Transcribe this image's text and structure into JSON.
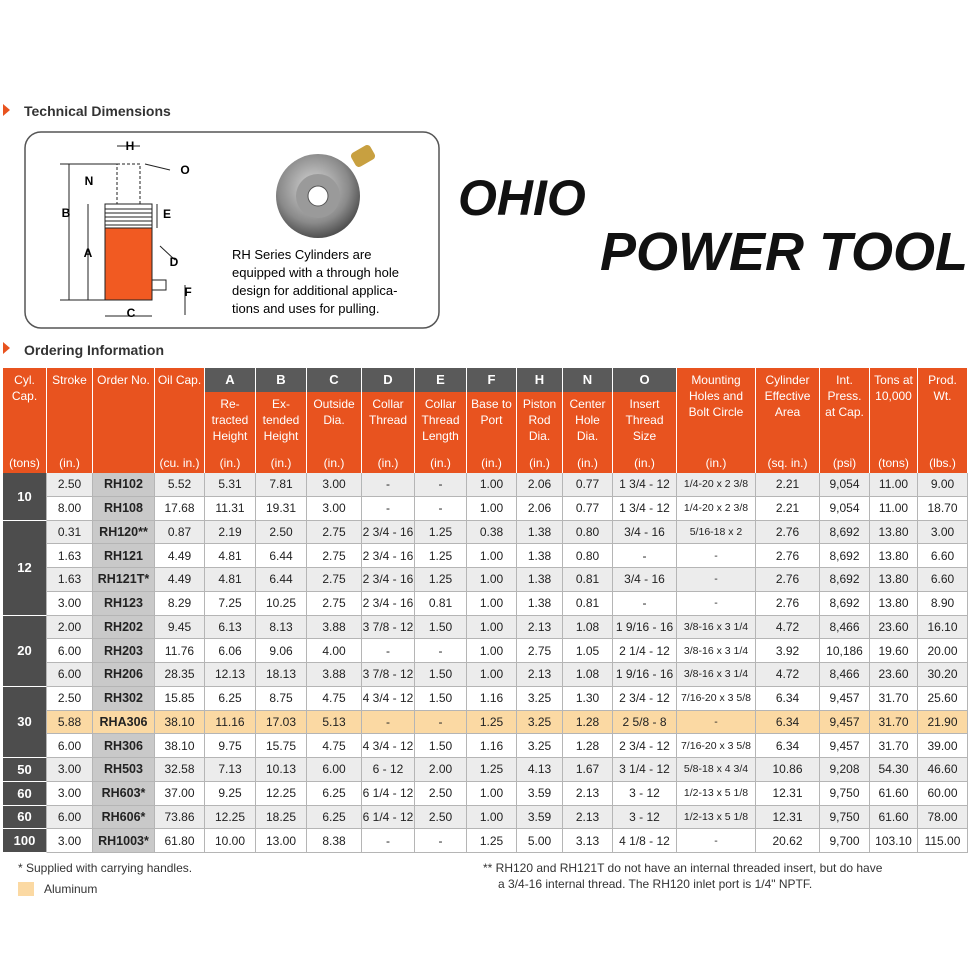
{
  "sections": {
    "technical": "Technical Dimensions",
    "ordering": "Ordering Information"
  },
  "diagram": {
    "labels": {
      "H": "H",
      "O": "O",
      "N": "N",
      "B": "B",
      "E": "E",
      "A": "A",
      "D": "D",
      "F": "F",
      "C": "C"
    },
    "caption": [
      "RH Series Cylinders are",
      "equipped with a through hole",
      "design for additional applica-",
      "tions and uses for pulling."
    ]
  },
  "logo": {
    "word1": "OHIO",
    "word2": "POWER TOOL"
  },
  "table": {
    "columns": [
      {
        "title": "Cyl. Cap.",
        "unit": "(tons)"
      },
      {
        "title": "Stroke",
        "unit": "(in.)"
      },
      {
        "title": "Order No."
      },
      {
        "title": "Oil Cap.",
        "unit": "(cu. in.)"
      },
      {
        "letter": "A",
        "title": "Re-tracted Height",
        "unit": "(in.)"
      },
      {
        "letter": "B",
        "title": "Ex-tended Height",
        "unit": "(in.)"
      },
      {
        "letter": "C",
        "title": "Outside Dia.",
        "unit": "(in.)"
      },
      {
        "letter": "D",
        "title": "Collar Thread",
        "unit": "(in.)"
      },
      {
        "letter": "E",
        "title": "Collar Thread Length",
        "unit": "(in.)"
      },
      {
        "letter": "F",
        "title": "Base to Port",
        "unit": "(in.)"
      },
      {
        "letter": "H",
        "title": "Piston Rod Dia.",
        "unit": "(in.)"
      },
      {
        "letter": "N",
        "title": "Center Hole Dia.",
        "unit": "(in.)"
      },
      {
        "letter": "O",
        "title": "Insert Thread Size",
        "unit": "(in.)"
      },
      {
        "title": "Mounting Holes and Bolt Circle",
        "unit": "(in.)"
      },
      {
        "title": "Cylinder Effective Area",
        "unit": "(sq. in.)"
      },
      {
        "title": "Int. Press. at Cap.",
        "unit": "(psi)"
      },
      {
        "title": "Tons at 10,000",
        "unit": "(tons)"
      },
      {
        "title": "Prod. Wt.",
        "unit": "(lbs.)"
      }
    ],
    "groups": [
      {
        "capacity": "10",
        "rows": [
          {
            "cells": [
              "2.50",
              "RH102",
              "5.52",
              "5.31",
              "7.81",
              "3.00",
              "-",
              "-",
              "1.00",
              "2.06",
              "0.77",
              "1 3/4 - 12",
              "1/4-20 x 2 3/8",
              "2.21",
              "9,054",
              "11.00",
              "9.00"
            ]
          },
          {
            "cells": [
              "8.00",
              "RH108",
              "17.68",
              "11.31",
              "19.31",
              "3.00",
              "-",
              "-",
              "1.00",
              "2.06",
              "0.77",
              "1 3/4 - 12",
              "1/4-20 x 2 3/8",
              "2.21",
              "9,054",
              "11.00",
              "18.70"
            ]
          }
        ]
      },
      {
        "capacity": "12",
        "rows": [
          {
            "cells": [
              "0.31",
              "RH120**",
              "0.87",
              "2.19",
              "2.50",
              "2.75",
              "2 3/4 - 16",
              "1.25",
              "0.38",
              "1.38",
              "0.80",
              "3/4 - 16",
              "5/16-18 x 2",
              "2.76",
              "8,692",
              "13.80",
              "3.00"
            ]
          },
          {
            "cells": [
              "1.63",
              "RH121",
              "4.49",
              "4.81",
              "6.44",
              "2.75",
              "2 3/4 - 16",
              "1.25",
              "1.00",
              "1.38",
              "0.80",
              "-",
              "-",
              "2.76",
              "8,692",
              "13.80",
              "6.60"
            ]
          },
          {
            "cells": [
              "1.63",
              "RH121T*",
              "4.49",
              "4.81",
              "6.44",
              "2.75",
              "2 3/4 - 16",
              "1.25",
              "1.00",
              "1.38",
              "0.81",
              "3/4 - 16",
              "-",
              "2.76",
              "8,692",
              "13.80",
              "6.60"
            ]
          },
          {
            "cells": [
              "3.00",
              "RH123",
              "8.29",
              "7.25",
              "10.25",
              "2.75",
              "2 3/4 - 16",
              "0.81",
              "1.00",
              "1.38",
              "0.81",
              "-",
              "-",
              "2.76",
              "8,692",
              "13.80",
              "8.90"
            ]
          }
        ]
      },
      {
        "capacity": "20",
        "rows": [
          {
            "cells": [
              "2.00",
              "RH202",
              "9.45",
              "6.13",
              "8.13",
              "3.88",
              "3 7/8 - 12",
              "1.50",
              "1.00",
              "2.13",
              "1.08",
              "1 9/16 - 16",
              "3/8-16 x 3 1/4",
              "4.72",
              "8,466",
              "23.60",
              "16.10"
            ]
          },
          {
            "cells": [
              "6.00",
              "RH203",
              "11.76",
              "6.06",
              "9.06",
              "4.00",
              "-",
              "-",
              "1.00",
              "2.75",
              "1.05",
              "2 1/4 - 12",
              "3/8-16 x 3 1/4",
              "3.92",
              "10,186",
              "19.60",
              "20.00"
            ]
          },
          {
            "cells": [
              "6.00",
              "RH206",
              "28.35",
              "12.13",
              "18.13",
              "3.88",
              "3 7/8 - 12",
              "1.50",
              "1.00",
              "2.13",
              "1.08",
              "1 9/16 - 16",
              "3/8-16 x 3 1/4",
              "4.72",
              "8,466",
              "23.60",
              "30.20"
            ]
          }
        ]
      },
      {
        "capacity": "30",
        "rows": [
          {
            "cells": [
              "2.50",
              "RH302",
              "15.85",
              "6.25",
              "8.75",
              "4.75",
              "4 3/4 - 12",
              "1.50",
              "1.16",
              "3.25",
              "1.30",
              "2 3/4 - 12",
              "7/16-20 x 3 5/8",
              "6.34",
              "9,457",
              "31.70",
              "25.60"
            ]
          },
          {
            "cells": [
              "5.88",
              "RHA306",
              "38.10",
              "11.16",
              "17.03",
              "5.13",
              "-",
              "-",
              "1.25",
              "3.25",
              "1.28",
              "2 5/8 - 8",
              "-",
              "6.34",
              "9,457",
              "31.70",
              "21.90"
            ],
            "aluminum": true
          },
          {
            "cells": [
              "6.00",
              "RH306",
              "38.10",
              "9.75",
              "15.75",
              "4.75",
              "4 3/4 - 12",
              "1.50",
              "1.16",
              "3.25",
              "1.28",
              "2 3/4 - 12",
              "7/16-20 x 3 5/8",
              "6.34",
              "9,457",
              "31.70",
              "39.00"
            ]
          }
        ]
      },
      {
        "capacity": "50",
        "rows": [
          {
            "cells": [
              "3.00",
              "RH503",
              "32.58",
              "7.13",
              "10.13",
              "6.00",
              "6 - 12",
              "2.00",
              "1.25",
              "4.13",
              "1.67",
              "3 1/4 - 12",
              "5/8-18 x 4 3/4",
              "10.86",
              "9,208",
              "54.30",
              "46.60"
            ]
          }
        ]
      },
      {
        "capacity": "60",
        "rows": [
          {
            "cells": [
              "3.00",
              "RH603*",
              "37.00",
              "9.25",
              "12.25",
              "6.25",
              "6 1/4 - 12",
              "2.50",
              "1.00",
              "3.59",
              "2.13",
              "3 - 12",
              "1/2-13 x 5 1/8",
              "12.31",
              "9,750",
              "61.60",
              "60.00"
            ]
          }
        ]
      },
      {
        "capacity": "60",
        "rows": [
          {
            "cells": [
              "6.00",
              "RH606*",
              "73.86",
              "12.25",
              "18.25",
              "6.25",
              "6 1/4 - 12",
              "2.50",
              "1.00",
              "3.59",
              "2.13",
              "3 - 12",
              "1/2-13 x 5 1/8",
              "12.31",
              "9,750",
              "61.60",
              "78.00"
            ]
          }
        ]
      },
      {
        "capacity": "100",
        "rows": [
          {
            "cells": [
              "3.00",
              "RH1003*",
              "61.80",
              "10.00",
              "13.00",
              "8.38",
              "-",
              "-",
              "1.25",
              "5.00",
              "3.13",
              "4 1/8 - 12",
              "-",
              "20.62",
              "9,700",
              "103.10",
              "115.00"
            ]
          }
        ]
      }
    ]
  },
  "footnotes": {
    "star": "* Supplied with carrying handles.",
    "aluminum": "Aluminum",
    "double_star": [
      "** RH120 and RH121T do not have an internal threaded insert, but do have",
      "a 3/4-16 internal thread. The RH120 inlet port is 1/4\" NPTF."
    ]
  }
}
